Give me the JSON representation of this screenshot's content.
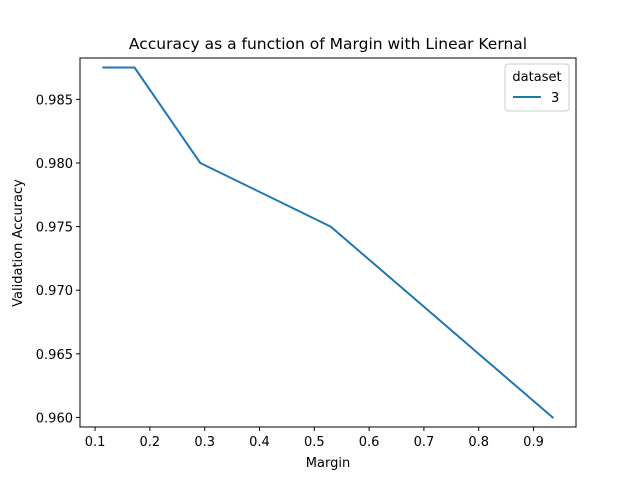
{
  "chart_data": {
    "type": "line",
    "title": "Accuracy as a function of Margin with Linear Kernal",
    "xlabel": "Margin",
    "ylabel": "Validation Accuracy",
    "xlim": [
      0.0725,
      0.9775
    ],
    "ylim": [
      0.95925,
      0.98825
    ],
    "xticks": [
      0.1,
      0.2,
      0.3,
      0.4,
      0.5,
      0.6,
      0.7,
      0.8,
      0.9
    ],
    "xtick_labels": [
      "0.1",
      "0.2",
      "0.3",
      "0.4",
      "0.5",
      "0.6",
      "0.7",
      "0.8",
      "0.9"
    ],
    "yticks": [
      0.96,
      0.965,
      0.97,
      0.975,
      0.98,
      0.985
    ],
    "ytick_labels": [
      "0.960",
      "0.965",
      "0.970",
      "0.975",
      "0.980",
      "0.985"
    ],
    "grid": false,
    "legend": {
      "title": "dataset",
      "placement": "top-right"
    },
    "series": [
      {
        "name": "3",
        "color": "#1f77b4",
        "x": [
          0.115,
          0.172,
          0.292,
          0.53,
          0.935
        ],
        "y": [
          0.9875,
          0.9875,
          0.98,
          0.975,
          0.96
        ]
      }
    ]
  }
}
